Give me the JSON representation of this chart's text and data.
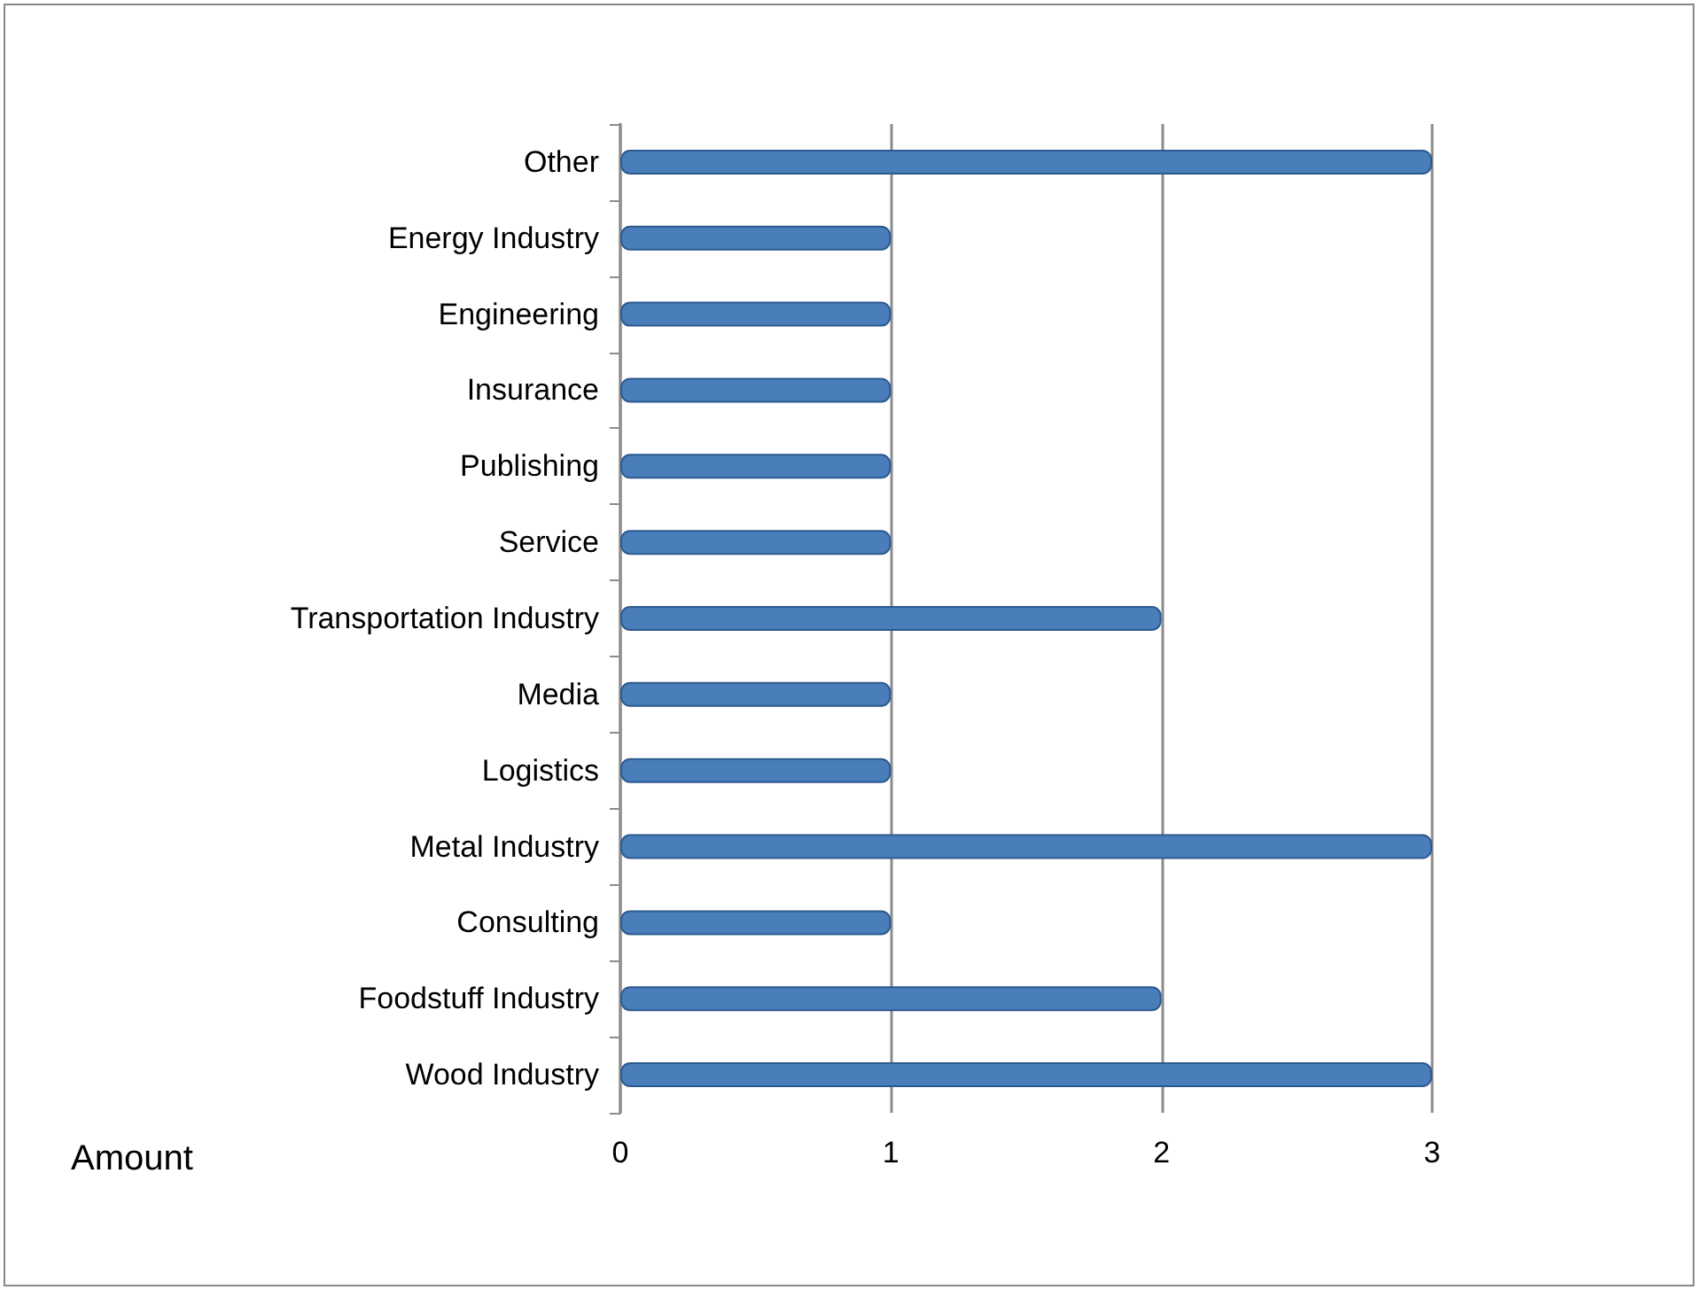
{
  "chart_data": {
    "type": "bar",
    "orientation": "horizontal",
    "xlabel": "Amount",
    "categories": [
      "Other",
      "Energy Industry",
      "Engineering",
      "Insurance",
      "Publishing",
      "Service",
      "Transportation Industry",
      "Media",
      "Logistics",
      "Metal Industry",
      "Consulting",
      "Foodstuff Industry",
      "Wood Industry"
    ],
    "values": [
      3,
      1,
      1,
      1,
      1,
      1,
      2,
      1,
      1,
      3,
      1,
      2,
      3
    ],
    "color": "#4a7ebb",
    "xlim": [
      0,
      3
    ],
    "xticks": [
      0,
      1,
      2,
      3
    ],
    "grid": "x"
  }
}
